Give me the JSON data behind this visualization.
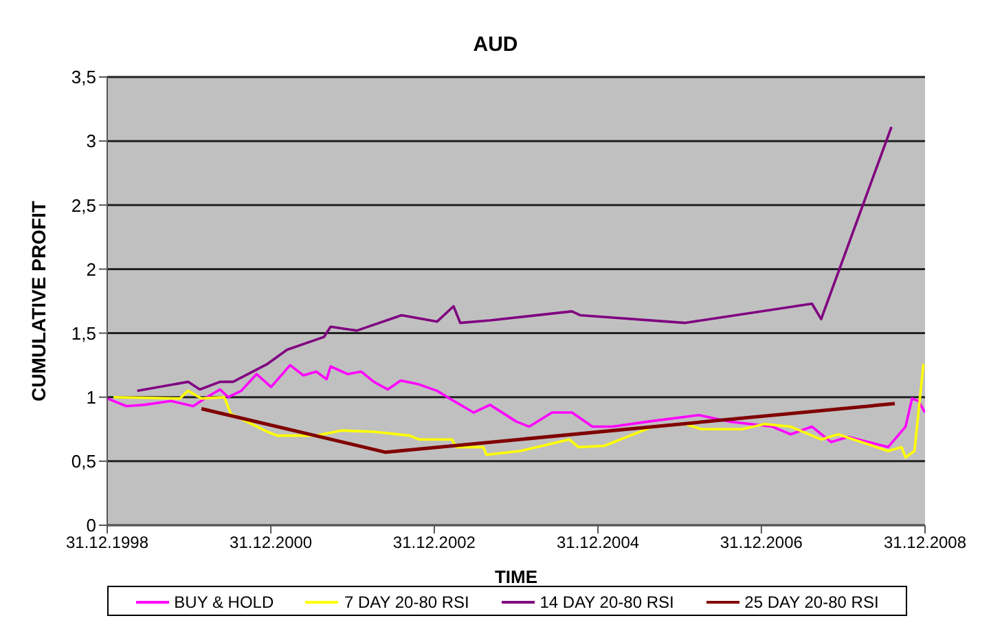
{
  "chart_data": {
    "type": "line",
    "title": "AUD",
    "xlabel": "TIME",
    "ylabel": "CUMULATIVE PROFIT",
    "xlim": [
      "1998-12-31",
      "2008-12-31"
    ],
    "xticks": [
      {
        "value": "1998-12-31",
        "label": "31.12.1998"
      },
      {
        "value": "2000-12-31",
        "label": "31.12.2000"
      },
      {
        "value": "2002-12-31",
        "label": "31.12.2002"
      },
      {
        "value": "2004-12-31",
        "label": "31.12.2004"
      },
      {
        "value": "2006-12-31",
        "label": "31.12.2006"
      },
      {
        "value": "2008-12-31",
        "label": "31.12.2008"
      }
    ],
    "ylim": [
      0,
      3.5
    ],
    "yticks": [
      0,
      {
        "value": 0.5,
        "label": "0,5"
      },
      1,
      {
        "value": 1.5,
        "label": "1,5"
      },
      2,
      {
        "value": 2.5,
        "label": "2,5"
      },
      3,
      {
        "value": 3.5,
        "label": "3,5"
      }
    ],
    "grid": "y",
    "legend": "bottom",
    "marker": "none",
    "line_style": "solid",
    "series": [
      {
        "name": "BUY & HOLD",
        "color": "#ff00ff",
        "x": [
          "1998-12-31",
          "1999-03-27",
          "1999-06-13",
          "1999-10-12",
          "2000-01-19",
          "2000-03-20",
          "2000-05-18",
          "2000-06-24",
          "2000-08-21",
          "2000-10-28",
          "2001-01-01",
          "2001-03-27",
          "2001-05-25",
          "2001-07-22",
          "2001-09-06",
          "2001-09-24",
          "2001-12-09",
          "2002-02-07",
          "2002-04-05",
          "2002-06-06",
          "2002-08-03",
          "2002-10-23",
          "2003-01-12",
          "2003-03-09",
          "2003-05-07",
          "2003-06-24",
          "2003-09-06",
          "2004-01-01",
          "2004-02-28",
          "2004-06-09",
          "2004-09-06",
          "2004-12-06",
          "2005-03-06",
          "2005-08-14",
          "2006-03-27",
          "2006-08-07",
          "2007-02-18",
          "2007-05-11",
          "2007-08-14",
          "2007-11-07",
          "2008-01-23",
          "2008-07-19",
          "2008-10-05",
          "2008-11-03",
          "2008-12-02",
          "2008-12-31"
        ],
        "values": [
          0.99,
          0.93,
          0.94,
          0.97,
          0.93,
          1.0,
          1.06,
          1.0,
          1.05,
          1.18,
          1.08,
          1.25,
          1.17,
          1.2,
          1.14,
          1.24,
          1.18,
          1.2,
          1.12,
          1.06,
          1.13,
          1.1,
          1.05,
          0.99,
          0.93,
          0.88,
          0.94,
          0.81,
          0.77,
          0.88,
          0.88,
          0.77,
          0.77,
          0.81,
          0.86,
          0.81,
          0.77,
          0.71,
          0.77,
          0.65,
          0.69,
          0.61,
          0.77,
          0.99,
          0.97,
          0.88
        ]
      },
      {
        "name": "7 DAY 20-80 RSI",
        "color": "#ffff00",
        "x": [
          "1999-01-28",
          "1999-11-21",
          "1999-12-27",
          "2000-02-25",
          "2000-06-06",
          "2000-07-05",
          "2000-12-16",
          "2001-01-28",
          "2001-07-22",
          "2001-11-11",
          "2002-04-05",
          "2002-09-13",
          "2002-10-23",
          "2003-03-20",
          "2003-04-08",
          "2003-08-07",
          "2003-08-21",
          "2004-01-19",
          "2004-08-25",
          "2004-10-05",
          "2005-01-28",
          "2005-09-02",
          "2006-01-23",
          "2006-04-08",
          "2006-10-05",
          "2007-01-15",
          "2007-05-11",
          "2007-09-24",
          "2007-12-09",
          "2008-07-19",
          "2008-09-17",
          "2008-10-05",
          "2008-11-14",
          "2008-12-24"
        ],
        "values": [
          1.0,
          0.99,
          1.05,
          0.99,
          1.0,
          0.87,
          0.73,
          0.7,
          0.7,
          0.74,
          0.73,
          0.7,
          0.67,
          0.67,
          0.61,
          0.61,
          0.55,
          0.58,
          0.67,
          0.61,
          0.62,
          0.77,
          0.79,
          0.75,
          0.75,
          0.79,
          0.77,
          0.67,
          0.71,
          0.58,
          0.61,
          0.53,
          0.58,
          1.26
        ]
      },
      {
        "name": "14 DAY 20-80 RSI",
        "color": "#800080",
        "x": [
          "1999-05-14",
          "1999-12-27",
          "2000-02-18",
          "2000-05-18",
          "2000-07-15",
          "2000-12-16",
          "2001-03-13",
          "2001-08-25",
          "2001-09-24",
          "2002-01-19",
          "2002-08-07",
          "2003-01-12",
          "2003-03-27",
          "2003-04-26",
          "2003-09-06",
          "2004-09-06",
          "2004-10-12",
          "2006-01-23",
          "2007-08-14",
          "2007-09-24",
          "2008-08-03"
        ],
        "values": [
          1.05,
          1.12,
          1.06,
          1.12,
          1.12,
          1.26,
          1.37,
          1.47,
          1.55,
          1.52,
          1.64,
          1.59,
          1.71,
          1.58,
          1.6,
          1.67,
          1.64,
          1.58,
          1.73,
          1.61,
          3.11
        ]
      },
      {
        "name": "25 DAY 20-80 RSI",
        "color": "#800000",
        "x": [
          "2000-02-25",
          "2002-05-28",
          "2008-08-18"
        ],
        "values": [
          0.91,
          0.57,
          0.95
        ]
      }
    ]
  }
}
